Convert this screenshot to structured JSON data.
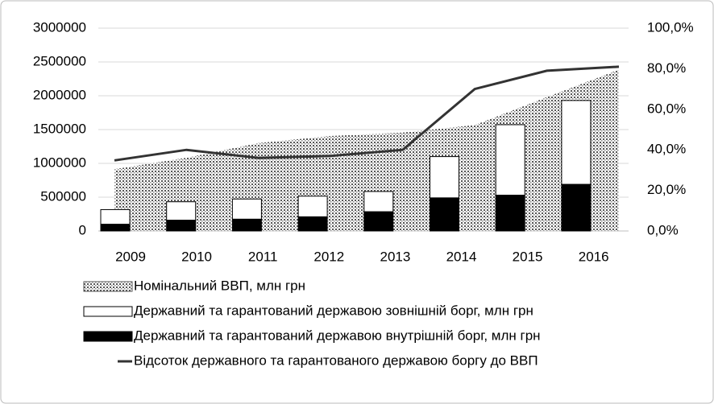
{
  "chart_data": {
    "type": "combo",
    "categories": [
      "2009",
      "2010",
      "2011",
      "2012",
      "2013",
      "2014",
      "2015",
      "2016"
    ],
    "series": [
      {
        "name": "Номінальний ВВП, млн грн",
        "type": "area",
        "color": "#808080",
        "values": [
          913000,
          1083000,
          1300000,
          1405000,
          1455000,
          1567000,
          1980000,
          2385000
        ]
      },
      {
        "name": "Державний та гарантований державою зовнішній борг, млн грн",
        "type": "bar",
        "color": "#ffffff",
        "values": [
          216000,
          272000,
          298000,
          305000,
          299000,
          610000,
          1042000,
          1240000
        ]
      },
      {
        "name": "Державний та гарантований державою внутрішній борг, млн грн",
        "type": "bar",
        "color": "#000000",
        "values": [
          100000,
          160000,
          175000,
          210000,
          285000,
          490000,
          530000,
          690000
        ]
      },
      {
        "name": "Відсоток державного та гарантованого державою  боргу до ВВП",
        "type": "line",
        "axis": "y2",
        "color": "#333333",
        "values": [
          34.8,
          40.0,
          36.0,
          37.0,
          40.0,
          70.0,
          79.0,
          81.0
        ]
      }
    ],
    "ylim": [
      0,
      3000000
    ],
    "yticks": [
      0,
      500000,
      1000000,
      1500000,
      2000000,
      2500000,
      3000000
    ],
    "y2lim": [
      0,
      100
    ],
    "y2ticks": [
      {
        "value": 0,
        "label": "0,0%"
      },
      {
        "value": 20,
        "label": "20,0%"
      },
      {
        "value": 40,
        "label": "40,0%"
      },
      {
        "value": 60,
        "label": "60,0%"
      },
      {
        "value": 80,
        "label": "80,0%"
      },
      {
        "value": 100,
        "label": "100,0%"
      }
    ],
    "grid": true
  }
}
